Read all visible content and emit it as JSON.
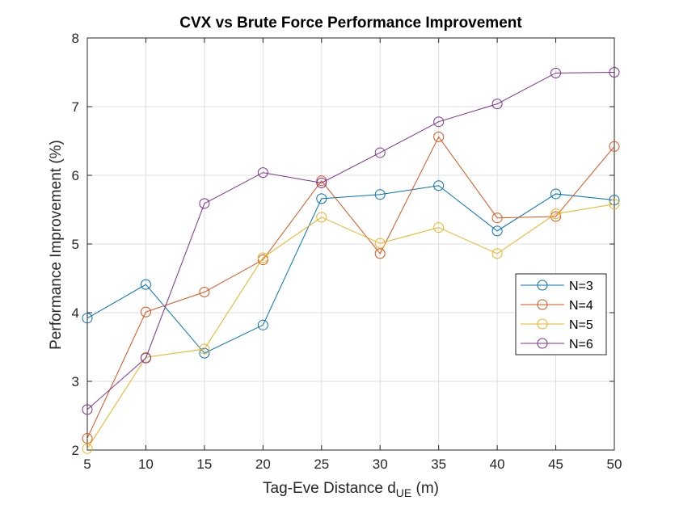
{
  "chart_data": {
    "type": "line",
    "title": "CVX vs Brute Force Performance Improvement",
    "xlabel_main": "Tag-Eve Distance d",
    "xlabel_sub": "UE",
    "xlabel_unit": " (m)",
    "ylabel": "Performance Improvement (%)",
    "xlim": [
      5,
      50
    ],
    "ylim": [
      2,
      8
    ],
    "grid": true,
    "legend_position": "right",
    "x": [
      5,
      10,
      15,
      20,
      25,
      30,
      35,
      40,
      45,
      50
    ],
    "x_ticks": [
      "5",
      "10",
      "15",
      "20",
      "25",
      "30",
      "35",
      "40",
      "45",
      "50"
    ],
    "y_ticks": [
      "2",
      "3",
      "4",
      "5",
      "6",
      "7",
      "8"
    ],
    "series": [
      {
        "name": "N=3",
        "color": "#0072BD",
        "values": [
          3.92,
          4.41,
          3.41,
          3.82,
          5.66,
          5.72,
          5.85,
          5.19,
          5.73,
          5.64
        ]
      },
      {
        "name": "N=4",
        "color": "#D95319",
        "values": [
          2.17,
          4.01,
          4.3,
          4.77,
          5.92,
          4.86,
          6.56,
          5.38,
          5.4,
          6.42
        ]
      },
      {
        "name": "N=5",
        "color": "#EDB120",
        "values": [
          2.02,
          3.35,
          3.47,
          4.8,
          5.39,
          5.01,
          5.24,
          4.86,
          5.44,
          5.58
        ]
      },
      {
        "name": "N=6",
        "color": "#7E2F8E",
        "values": [
          2.59,
          3.34,
          5.59,
          6.04,
          5.89,
          6.33,
          6.78,
          7.04,
          7.49,
          7.5
        ]
      }
    ]
  }
}
